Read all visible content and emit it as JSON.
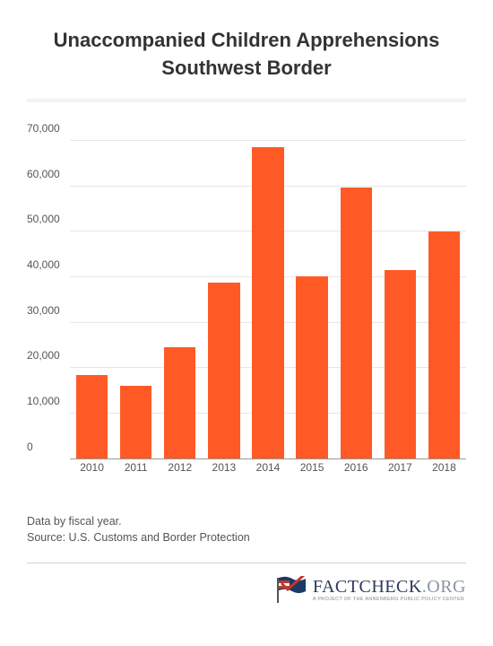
{
  "title_line1": "Unaccompanied Children Apprehensions",
  "title_line2": "Southwest Border",
  "title_fontsize": 22,
  "title_color": "#333333",
  "chart": {
    "type": "bar",
    "categories": [
      "2010",
      "2011",
      "2012",
      "2013",
      "2014",
      "2015",
      "2016",
      "2017",
      "2018"
    ],
    "values": [
      18400,
      16000,
      24500,
      38800,
      68500,
      40000,
      59700,
      41400,
      50000
    ],
    "bar_color": "#ff5a26",
    "bar_width_pct": 72,
    "ylim": [
      0,
      75000
    ],
    "yticks": [
      0,
      10000,
      20000,
      30000,
      40000,
      50000,
      60000,
      70000
    ],
    "ytick_labels": [
      "0",
      "10,000",
      "20,000",
      "30,000",
      "40,000",
      "50,000",
      "60,000",
      "70,000"
    ],
    "grid_color": "#e6e6e6",
    "axis_color": "#999999",
    "label_fontsize": 12,
    "label_color": "#555555",
    "background_color": "#ffffff"
  },
  "note_line1": "Data by fiscal year.",
  "note_line2": "Source: U.S. Customs and Border Protection",
  "note_fontsize": 12.5,
  "note_color": "#555555",
  "logo": {
    "text_main": "FACTCHECK",
    "text_ext": ".ORG",
    "subtitle": "A PROJECT OF THE ANNENBERG PUBLIC POLICY CENTER",
    "flag_blue": "#1b3a66",
    "flag_red": "#c0392b",
    "flag_white": "#ffffff",
    "text_color": "#2a3a5a",
    "ext_color": "#8a94a6"
  }
}
